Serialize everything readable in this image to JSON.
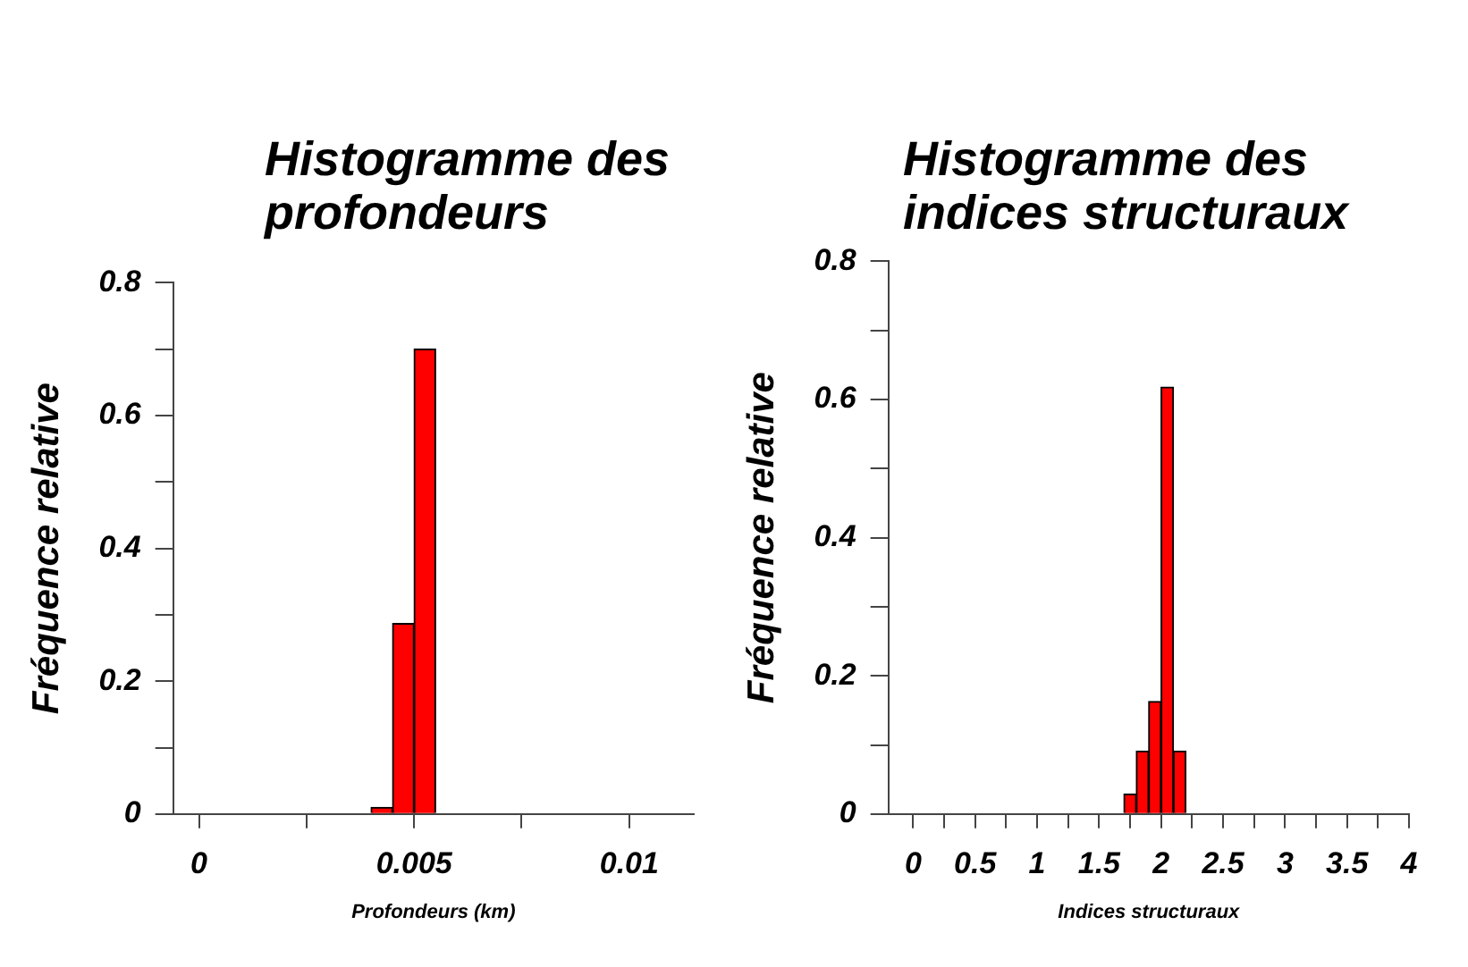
{
  "chart_data": [
    {
      "type": "histogram",
      "title": "Histogramme des profondeurs",
      "xlabel": "Profondeurs (km)",
      "ylabel": "Fréquence relative",
      "bins": [
        0.004,
        0.0045,
        0.005,
        0.0055
      ],
      "values": [
        0.01,
        0.287,
        0.7
      ],
      "color": "#ff0000",
      "xlim": [
        -0.0006,
        0.0115
      ],
      "xticks": [
        0,
        {
          "value": 0.0025,
          "label": null
        },
        0.005,
        {
          "value": 0.0075,
          "label": null
        },
        0.01
      ],
      "ylim": [
        0,
        0.8
      ],
      "yticks": [
        0,
        {
          "value": 0.1,
          "label": null
        },
        0.2,
        {
          "value": 0.3,
          "label": null
        },
        0.4,
        {
          "value": 0.5,
          "label": null
        },
        0.6,
        {
          "value": 0.7,
          "label": null
        },
        0.8
      ]
    },
    {
      "type": "histogram",
      "title": "Histogramme des indices structuraux",
      "xlabel": "Indices structuraux",
      "ylabel": "Fréquence relative",
      "bins": [
        1.7,
        1.8,
        1.9,
        2.0,
        2.1,
        2.2
      ],
      "values": [
        0.029,
        0.091,
        0.163,
        0.618,
        0.091
      ],
      "color": "#ff0000",
      "xlim": [
        -0.2,
        4
      ],
      "xticks": [
        0,
        {
          "value": 0.25,
          "label": null
        },
        0.5,
        {
          "value": 0.75,
          "label": null
        },
        1,
        {
          "value": 1.25,
          "label": null
        },
        1.5,
        {
          "value": 1.75,
          "label": null
        },
        2,
        {
          "value": 2.25,
          "label": null
        },
        2.5,
        {
          "value": 2.75,
          "label": null
        },
        3,
        {
          "value": 3.25,
          "label": null
        },
        3.5,
        {
          "value": 3.75,
          "label": null
        },
        4
      ],
      "ylim": [
        0,
        0.8
      ],
      "yticks": [
        0,
        {
          "value": 0.1,
          "label": null
        },
        0.2,
        {
          "value": 0.3,
          "label": null
        },
        0.4,
        {
          "value": 0.5,
          "label": null
        },
        0.6,
        {
          "value": 0.7,
          "label": null
        },
        0.8
      ]
    }
  ]
}
